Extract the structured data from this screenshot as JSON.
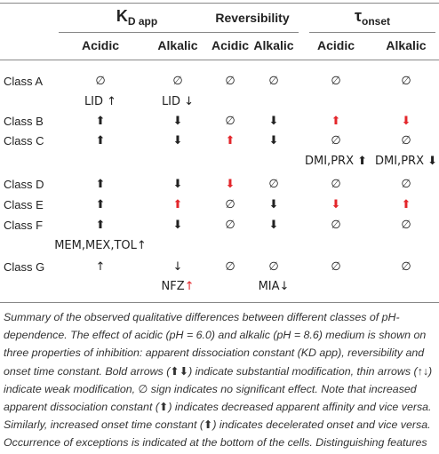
{
  "header": {
    "groups": [
      {
        "text": "K",
        "sub": "D app"
      },
      {
        "text": "Reversibility"
      },
      {
        "text": "τ",
        "sub": "onset"
      }
    ],
    "columns": [
      "Acidic",
      "Alkalic",
      "Acidic",
      "Alkalic",
      "Acidic",
      "Alkalic"
    ]
  },
  "table": {
    "rows": [
      {
        "label": "Class A",
        "cells": [
          "∅",
          "∅",
          "∅",
          "∅",
          "∅",
          "∅"
        ]
      },
      {
        "cells": [
          "LID ↑",
          "LID ↓",
          null,
          null,
          null,
          null
        ]
      },
      {
        "label": "Class B",
        "cells": [
          "⬆",
          "⬇",
          "∅",
          "⬇",
          {
            "text": "⬆",
            "color": "#e3262b"
          },
          {
            "text": "⬇",
            "color": "#e3262b"
          }
        ]
      },
      {
        "label": "Class C",
        "cells": [
          "⬆",
          "⬇",
          {
            "text": "⬆",
            "color": "#e3262b"
          },
          "⬇",
          "∅",
          "∅"
        ]
      },
      {
        "cells": [
          null,
          null,
          null,
          null,
          "DMI,PRX ⬆",
          "DMI,PRX ⬇"
        ]
      },
      {
        "label": "Class D",
        "cells": [
          "⬆",
          "⬇",
          {
            "text": "⬇",
            "color": "#e3262b"
          },
          "∅",
          "∅",
          "∅"
        ]
      },
      {
        "label": "Class E",
        "cells": [
          "⬆",
          {
            "text": "⬆",
            "color": "#e3262b"
          },
          "∅",
          "⬇",
          {
            "text": "⬇",
            "color": "#e3262b"
          },
          {
            "text": "⬆",
            "color": "#e3262b"
          }
        ]
      },
      {
        "label": "Class F",
        "cells": [
          "⬆",
          "⬇",
          "∅",
          "⬇",
          "∅",
          "∅"
        ]
      },
      {
        "cells": [
          "MEM,MEX,TOL↑",
          null,
          null,
          null,
          null,
          null
        ]
      },
      {
        "label": "Class G",
        "cells": [
          "↑",
          "↓",
          "∅",
          "∅",
          "∅",
          "∅"
        ]
      },
      {
        "cells": [
          null,
          [
            {
              "text": "NFZ"
            },
            {
              "text": "↑",
              "color": "#e3262b"
            }
          ],
          null,
          "MIA↓",
          null,
          null
        ]
      }
    ]
  },
  "caption": "Summary of the observed qualitative differences between different classes of pH-dependence. The effect of acidic (pH = 6.0) and alkalic (pH = 8.6) medium is shown on three properties of inhibition: apparent dissociation constant (KD app), reversibility and onset time constant. Bold arrows (⬆⬇) indicate substantial modification, thin arrows (↑↓) indicate weak modification, ∅ sign indicates no significant effect. Note that increased apparent dissociation constant (⬆) indicates decreased apparent affinity and vice versa. Similarly, increased onset time constant (⬆) indicates decelerated onset and vice versa. Occurrence of exceptions is indicated at the bottom of the cells. Distinguishing features are in red fonts."
}
